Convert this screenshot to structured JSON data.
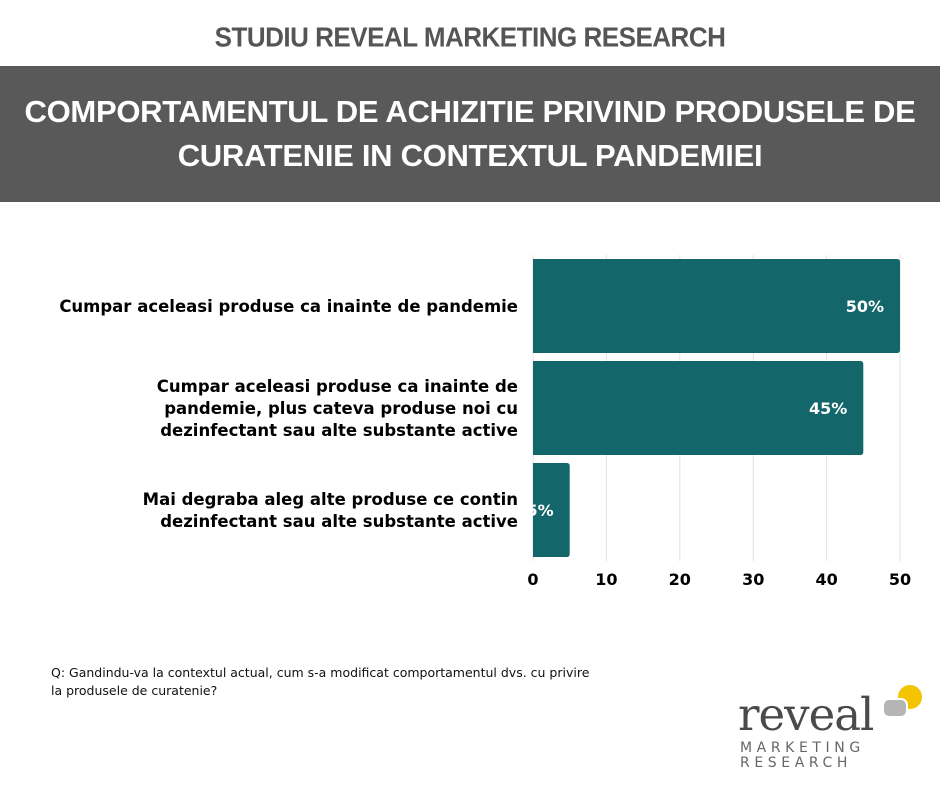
{
  "header": {
    "top_label": "STUDIU REVEAL MARKETING RESEARCH",
    "title_line1": "COMPORTAMENTUL DE ACHIZITIE PRIVIND PRODUSELE DE",
    "title_line2": "CURATENIE IN CONTEXTUL PANDEMIEI"
  },
  "chart_data": {
    "type": "bar",
    "orientation": "horizontal",
    "categories": [
      [
        "Cumpar aceleasi produse ca inainte de pandemie"
      ],
      [
        "Cumpar aceleasi produse ca inainte de",
        "pandemie, plus cateva produse noi cu",
        "dezinfectant sau alte substante active"
      ],
      [
        "Mai degraba aleg alte produse ce contin",
        "dezinfectant sau alte substante active"
      ]
    ],
    "values": [
      50,
      45,
      5
    ],
    "data_labels": [
      "50%",
      "45%",
      "5%"
    ],
    "xlim": [
      0,
      50
    ],
    "xticks": [
      0,
      10,
      20,
      30,
      40,
      50
    ],
    "grid": "vertical",
    "bar_color": "#13666a",
    "grid_color": "#e2e2e2"
  },
  "question": "Q: Gandindu-va la contextul actual, cum s-a modificat comportamentul dvs. cu privire la produsele de curatenie?",
  "logo": {
    "word": "reveal",
    "line1": "MARKETING",
    "line2": "RESEARCH",
    "accent_color": "#f4c400",
    "gray_color": "#b5b5b5"
  }
}
